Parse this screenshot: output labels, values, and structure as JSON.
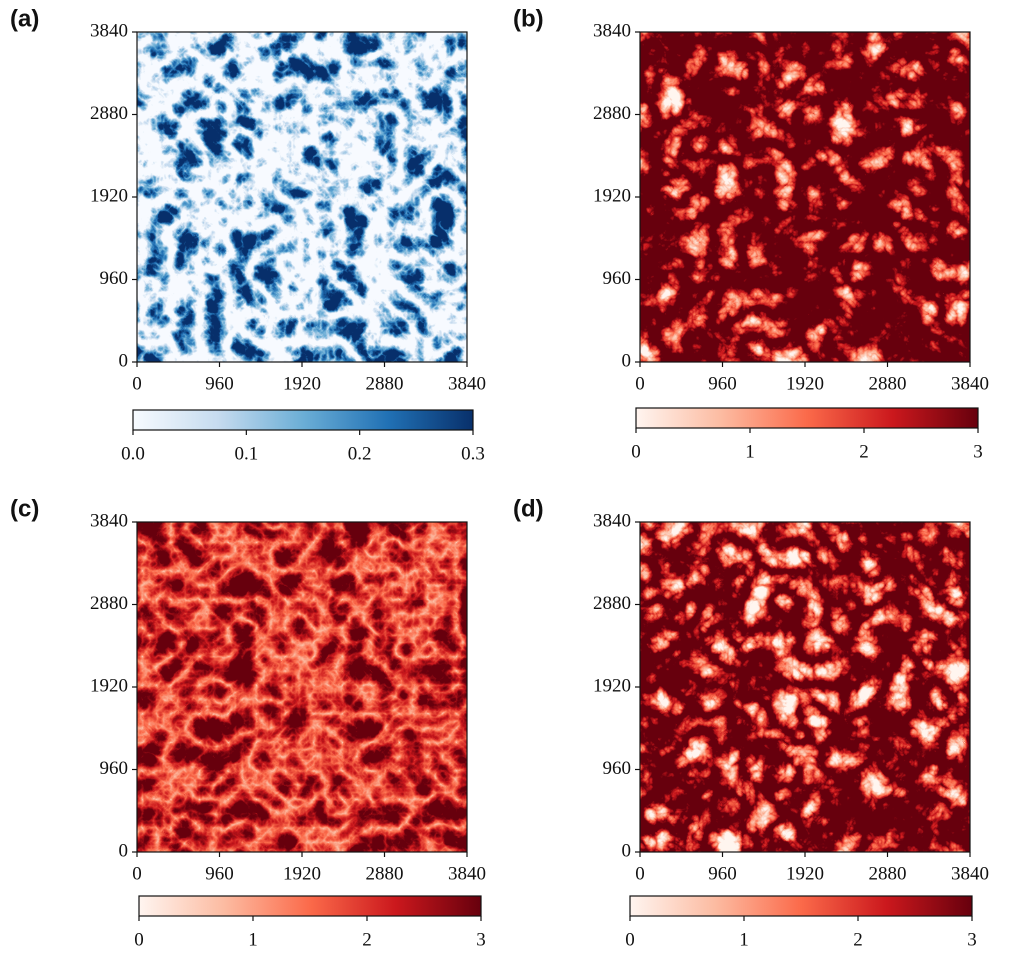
{
  "chart_data": [
    {
      "type": "heatmap",
      "panel_label": "(a)",
      "xlim": [
        0,
        3840
      ],
      "ylim": [
        0,
        3840
      ],
      "xticks": [
        0,
        960,
        1920,
        2880,
        3840
      ],
      "yticks": [
        0,
        960,
        1920,
        2880,
        3840
      ],
      "colorbar": {
        "lim": [
          0,
          0.3
        ],
        "ticks": [
          {
            "value": 0,
            "label": "0.0"
          },
          {
            "value": 0.1,
            "label": "0.1"
          },
          {
            "value": 0.2,
            "label": "0.2"
          },
          {
            "value": 0.3,
            "label": "0.3"
          }
        ],
        "colors": [
          "#f7fbff",
          "#c6dbef",
          "#6baed6",
          "#2171b5",
          "#08306b"
        ]
      }
    },
    {
      "type": "heatmap",
      "panel_label": "(b)",
      "xlim": [
        0,
        3840
      ],
      "ylim": [
        0,
        3840
      ],
      "xticks": [
        0,
        960,
        1920,
        2880,
        3840
      ],
      "yticks": [
        0,
        960,
        1920,
        2880,
        3840
      ],
      "colorbar": {
        "lim": [
          0,
          3
        ],
        "ticks": [
          0,
          1,
          2,
          3
        ],
        "colors": [
          "#fff5f0",
          "#fcbba1",
          "#fb6a4a",
          "#cb181d",
          "#67000d"
        ]
      }
    },
    {
      "type": "heatmap",
      "panel_label": "(c)",
      "xlim": [
        0,
        3840
      ],
      "ylim": [
        0,
        3840
      ],
      "xticks": [
        0,
        960,
        1920,
        2880,
        3840
      ],
      "yticks": [
        0,
        960,
        1920,
        2880,
        3840
      ],
      "colorbar": {
        "lim": [
          0,
          3
        ],
        "ticks": [
          0,
          1,
          2,
          3
        ],
        "colors": [
          "#fff5f0",
          "#fcbba1",
          "#fb6a4a",
          "#cb181d",
          "#67000d"
        ]
      }
    },
    {
      "type": "heatmap",
      "panel_label": "(d)",
      "xlim": [
        0,
        3840
      ],
      "ylim": [
        0,
        3840
      ],
      "xticks": [
        0,
        960,
        1920,
        2880,
        3840
      ],
      "yticks": [
        0,
        960,
        1920,
        2880,
        3840
      ],
      "colorbar": {
        "lim": [
          0,
          3
        ],
        "ticks": [
          0,
          1,
          2,
          3
        ],
        "colors": [
          "#fff5f0",
          "#fcbba1",
          "#fb6a4a",
          "#cb181d",
          "#67000d"
        ]
      }
    }
  ]
}
